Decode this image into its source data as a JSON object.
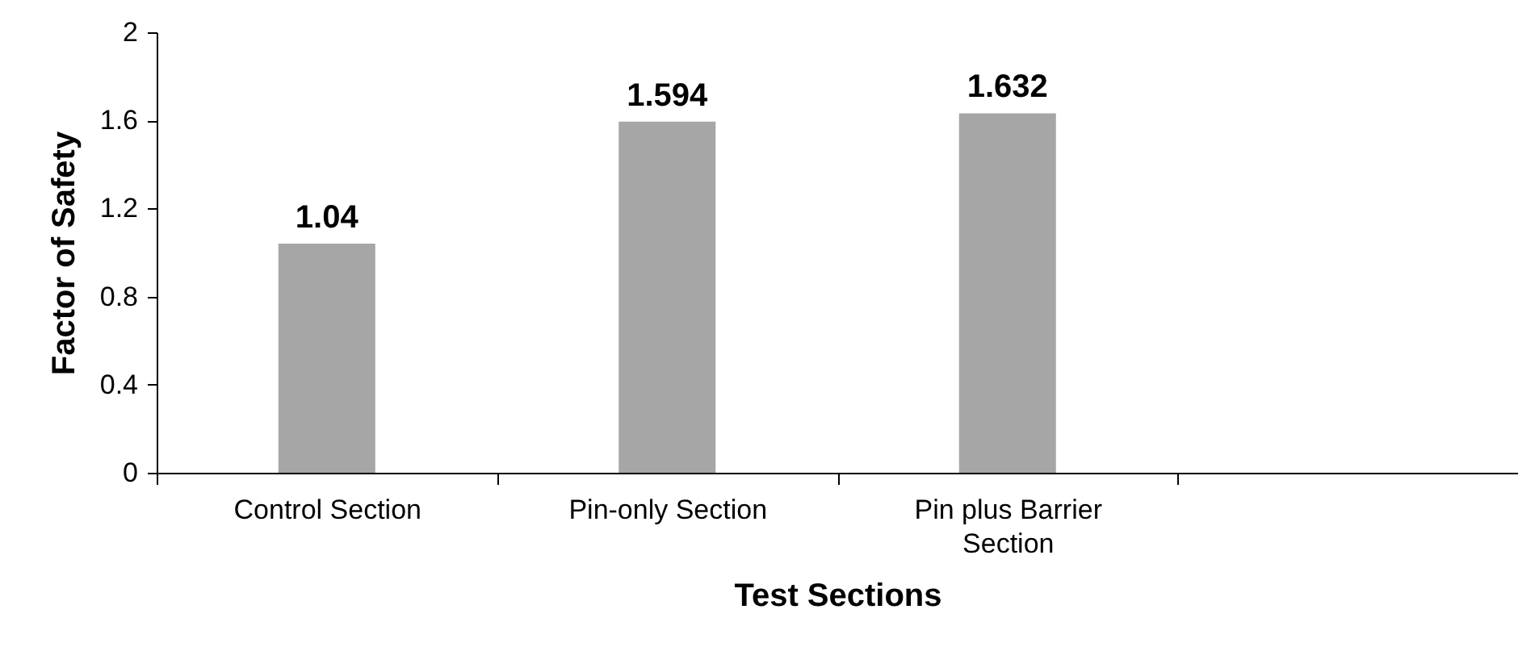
{
  "chart_data": {
    "type": "bar",
    "xlabel": "Test Sections",
    "ylabel": "Factor of Safety",
    "categories": [
      "Control Section",
      "Pin-only Section",
      "Pin plus Barrier Section",
      null
    ],
    "values": [
      1.04,
      1.594,
      1.632,
      null
    ],
    "color": "#a6a6a6",
    "ylim": [
      0,
      2
    ],
    "yticks": [
      0,
      0.4,
      0.8,
      1.2,
      1.6,
      2
    ],
    "grid": false,
    "data_labels": true
  }
}
